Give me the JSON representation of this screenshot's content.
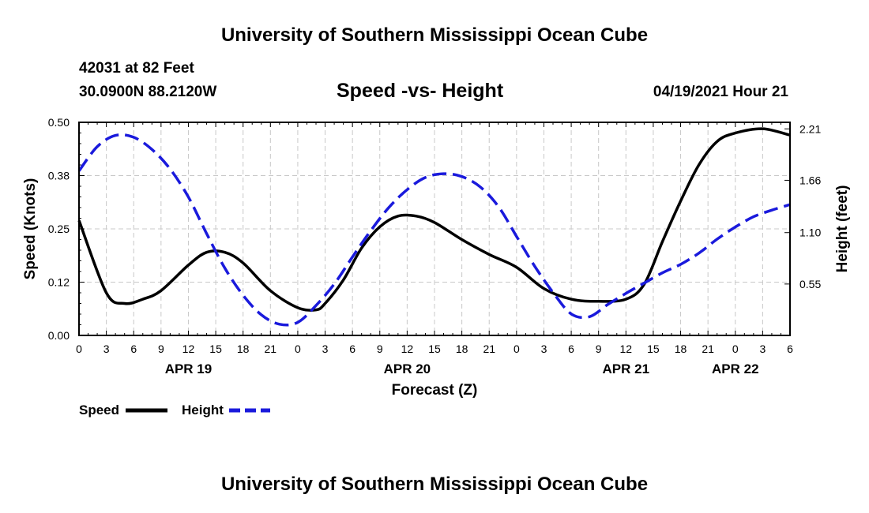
{
  "header": {
    "title": "University of Southern Mississippi Ocean Cube",
    "station": "42031 at 82 Feet",
    "coords": "30.0900N  88.2120W",
    "subtitle": "Speed -vs- Height",
    "datetime": "04/19/2021 Hour 21"
  },
  "footer": {
    "title": "University of Southern Mississippi Ocean Cube"
  },
  "legend": {
    "speed_label": "Speed",
    "height_label": "Height"
  },
  "colors": {
    "speed": "#000000",
    "height": "#1a1adc",
    "grid": "#c8c8c8"
  },
  "chart_data": {
    "type": "line",
    "title": "Speed -vs- Height",
    "xlabel": "Forecast (Z)",
    "ylabel": "Speed (Knots)",
    "y2label": "Height (feet)",
    "x_tick_labels": [
      "0",
      "3",
      "6",
      "9",
      "12",
      "15",
      "18",
      "21",
      "0",
      "3",
      "6",
      "9",
      "12",
      "15",
      "18",
      "21",
      "0",
      "3",
      "6",
      "9",
      "12",
      "15",
      "18",
      "21",
      "0",
      "3",
      "6"
    ],
    "day_labels": [
      {
        "label": "APR 19",
        "hour": 12
      },
      {
        "label": "APR 20",
        "hour": 36
      },
      {
        "label": "APR 21",
        "hour": 60
      },
      {
        "label": "APR 22",
        "hour": 72
      }
    ],
    "xlim": [
      0,
      78
    ],
    "y_ticks": [
      "0.00",
      "0.12",
      "0.25",
      "0.38",
      "0.50"
    ],
    "ylim": [
      0,
      0.5
    ],
    "y2_ticks": [
      "0.55",
      "1.10",
      "1.66",
      "2.21"
    ],
    "y2_tick_values": [
      0.55,
      1.1,
      1.66,
      2.21
    ],
    "y2lim": [
      0,
      2.28
    ],
    "series": [
      {
        "name": "Speed",
        "axis": "left",
        "style": "solid",
        "x": [
          0,
          3,
          5,
          7,
          9,
          12,
          14,
          16,
          18,
          21,
          24,
          26,
          27,
          29,
          31,
          33,
          35,
          37,
          39,
          42,
          45,
          48,
          51,
          54,
          57,
          60,
          62,
          64,
          66,
          68,
          70,
          72,
          75,
          78
        ],
        "values": [
          0.27,
          0.1,
          0.075,
          0.085,
          0.105,
          0.165,
          0.195,
          0.195,
          0.17,
          0.105,
          0.065,
          0.06,
          0.075,
          0.13,
          0.205,
          0.255,
          0.28,
          0.28,
          0.265,
          0.225,
          0.19,
          0.16,
          0.11,
          0.085,
          0.08,
          0.085,
          0.12,
          0.22,
          0.315,
          0.4,
          0.455,
          0.475,
          0.485,
          0.47
        ]
      },
      {
        "name": "Height",
        "axis": "right",
        "style": "dashed",
        "x": [
          0,
          2,
          4,
          6,
          8,
          10,
          12,
          14,
          16,
          18,
          20,
          22,
          24,
          26,
          28,
          30,
          32,
          34,
          36,
          38,
          40,
          42,
          44,
          46,
          48,
          50,
          52,
          54,
          56,
          58,
          60,
          62,
          64,
          66,
          68,
          70,
          72,
          74,
          76,
          78
        ],
        "values": [
          1.76,
          2.02,
          2.14,
          2.12,
          1.99,
          1.78,
          1.48,
          1.09,
          0.72,
          0.43,
          0.22,
          0.12,
          0.14,
          0.32,
          0.55,
          0.84,
          1.12,
          1.37,
          1.56,
          1.69,
          1.73,
          1.7,
          1.59,
          1.38,
          1.06,
          0.74,
          0.46,
          0.23,
          0.2,
          0.33,
          0.45,
          0.56,
          0.67,
          0.76,
          0.88,
          1.03,
          1.16,
          1.27,
          1.34,
          1.4
        ]
      }
    ]
  }
}
